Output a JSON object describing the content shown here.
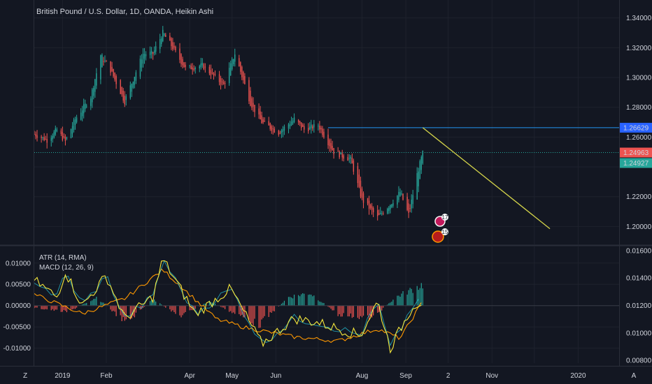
{
  "header": {
    "title": "British Pound / U.S. Dollar, 1D, OANDA, Heikin Ashi"
  },
  "badges": {
    "gbp_event": "17",
    "usd_event": "15"
  },
  "corner": {
    "left": "Z",
    "right": "A"
  },
  "chart_data": [
    {
      "type": "candlestick",
      "style": "Heikin Ashi",
      "title": "British Pound / U.S. Dollar, 1D, OANDA, Heikin Ashi",
      "ylim": [
        1.188,
        1.352
      ],
      "yticks": [
        "1.34000",
        "1.32000",
        "1.30000",
        "1.28000",
        "1.26000",
        "1.22000",
        "1.20000"
      ],
      "xticks": [
        "2019",
        "Feb",
        "Apr",
        "May",
        "Jun",
        "Aug",
        "Sep",
        "2",
        "Nov",
        "2020"
      ],
      "x_start": "2018-12-12",
      "x_end": "2020-01-30",
      "price_labels": [
        {
          "value": "1.26629",
          "color": "#2962ff"
        },
        {
          "value": "1.24963",
          "color": "#ef5350"
        },
        {
          "value": "1.24927",
          "color": "#26a69a"
        }
      ],
      "levels": {
        "resistance": 1.26629,
        "last": 1.24963
      },
      "trendline": [
        {
          "date": "2019-09-13",
          "price": 1.2663
        },
        {
          "date": "2019-12-12",
          "price": 1.1985
        }
      ],
      "close_path": [
        {
          "date": "2018-12-12",
          "price": 1.262
        },
        {
          "date": "2018-12-21",
          "price": 1.258
        },
        {
          "date": "2018-12-28",
          "price": 1.265
        },
        {
          "date": "2019-01-03",
          "price": 1.257
        },
        {
          "date": "2019-01-10",
          "price": 1.272
        },
        {
          "date": "2019-01-21",
          "price": 1.287
        },
        {
          "date": "2019-01-28",
          "price": 1.315
        },
        {
          "date": "2019-02-04",
          "price": 1.305
        },
        {
          "date": "2019-02-14",
          "price": 1.284
        },
        {
          "date": "2019-02-27",
          "price": 1.316
        },
        {
          "date": "2019-03-06",
          "price": 1.316
        },
        {
          "date": "2019-03-13",
          "price": 1.33
        },
        {
          "date": "2019-03-20",
          "price": 1.32
        },
        {
          "date": "2019-03-29",
          "price": 1.306
        },
        {
          "date": "2019-04-10",
          "price": 1.308
        },
        {
          "date": "2019-04-25",
          "price": 1.295
        },
        {
          "date": "2019-05-03",
          "price": 1.316
        },
        {
          "date": "2019-05-14",
          "price": 1.283
        },
        {
          "date": "2019-05-22",
          "price": 1.27
        },
        {
          "date": "2019-06-03",
          "price": 1.263
        },
        {
          "date": "2019-06-14",
          "price": 1.272
        },
        {
          "date": "2019-06-21",
          "price": 1.265
        },
        {
          "date": "2019-07-01",
          "price": 1.268
        },
        {
          "date": "2019-07-12",
          "price": 1.25
        },
        {
          "date": "2019-07-24",
          "price": 1.245
        },
        {
          "date": "2019-08-01",
          "price": 1.218
        },
        {
          "date": "2019-08-12",
          "price": 1.206
        },
        {
          "date": "2019-08-21",
          "price": 1.215
        },
        {
          "date": "2019-08-28",
          "price": 1.223
        },
        {
          "date": "2019-09-03",
          "price": 1.208
        },
        {
          "date": "2019-09-09",
          "price": 1.235
        },
        {
          "date": "2019-09-13",
          "price": 1.249
        }
      ]
    },
    {
      "type": "line",
      "series": [
        {
          "name": "ATR (14, RMA)",
          "color": "#ff9800"
        },
        {
          "name": "MACD (12, 26, 9)",
          "color": "#f5e73c"
        }
      ],
      "ylim_left": [
        -0.0135,
        0.0139
      ],
      "yticks_left": [
        "0.01000",
        "0.00500",
        "0.00000",
        "-0.00500",
        "-0.01000"
      ],
      "ylim_right": [
        0.0078,
        0.0163
      ],
      "yticks_right": [
        "0.01600",
        "0.01400",
        "0.01200",
        "0.01000",
        "0.00800"
      ],
      "macd_path": [
        {
          "date": "2018-12-12",
          "value": 0.006
        },
        {
          "date": "2018-12-28",
          "value": 0.002
        },
        {
          "date": "2019-01-03",
          "value": 0.008
        },
        {
          "date": "2019-01-15",
          "value": 0.0
        },
        {
          "date": "2019-02-01",
          "value": 0.007
        },
        {
          "date": "2019-02-14",
          "value": -0.003
        },
        {
          "date": "2019-03-06",
          "value": 0.002
        },
        {
          "date": "2019-03-13",
          "value": 0.011
        },
        {
          "date": "2019-04-05",
          "value": -0.002
        },
        {
          "date": "2019-04-30",
          "value": 0.004
        },
        {
          "date": "2019-05-22",
          "value": -0.009
        },
        {
          "date": "2019-06-14",
          "value": -0.003
        },
        {
          "date": "2019-07-01",
          "value": -0.004
        },
        {
          "date": "2019-07-31",
          "value": -0.007
        },
        {
          "date": "2019-08-12",
          "value": 0.001
        },
        {
          "date": "2019-08-21",
          "value": -0.01
        },
        {
          "date": "2019-09-06",
          "value": 0.0
        },
        {
          "date": "2019-09-13",
          "value": 0.001
        }
      ],
      "atr_path": [
        {
          "date": "2018-12-12",
          "value": 0.0128
        },
        {
          "date": "2019-01-15",
          "value": 0.0114
        },
        {
          "date": "2019-02-14",
          "value": 0.0125
        },
        {
          "date": "2019-03-13",
          "value": 0.0146
        },
        {
          "date": "2019-04-20",
          "value": 0.011
        },
        {
          "date": "2019-05-10",
          "value": 0.0104
        },
        {
          "date": "2019-06-14",
          "value": 0.0097
        },
        {
          "date": "2019-07-15",
          "value": 0.0094
        },
        {
          "date": "2019-08-12",
          "value": 0.0103
        },
        {
          "date": "2019-08-28",
          "value": 0.0096
        },
        {
          "date": "2019-09-13",
          "value": 0.0123
        }
      ],
      "histogram_path": [
        {
          "date": "2018-12-12",
          "value": -0.0005
        },
        {
          "date": "2019-01-05",
          "value": -0.0015
        },
        {
          "date": "2019-01-25",
          "value": 0.002
        },
        {
          "date": "2019-02-15",
          "value": -0.004
        },
        {
          "date": "2019-03-06",
          "value": 0.0015
        },
        {
          "date": "2019-03-25",
          "value": -0.0025
        },
        {
          "date": "2019-04-15",
          "value": 0.001
        },
        {
          "date": "2019-05-20",
          "value": -0.0045
        },
        {
          "date": "2019-06-10",
          "value": 0.002
        },
        {
          "date": "2019-06-25",
          "value": 0.003
        },
        {
          "date": "2019-07-15",
          "value": -0.002
        },
        {
          "date": "2019-08-08",
          "value": -0.003
        },
        {
          "date": "2019-08-25",
          "value": 0.002
        },
        {
          "date": "2019-09-13",
          "value": 0.005
        }
      ]
    }
  ]
}
